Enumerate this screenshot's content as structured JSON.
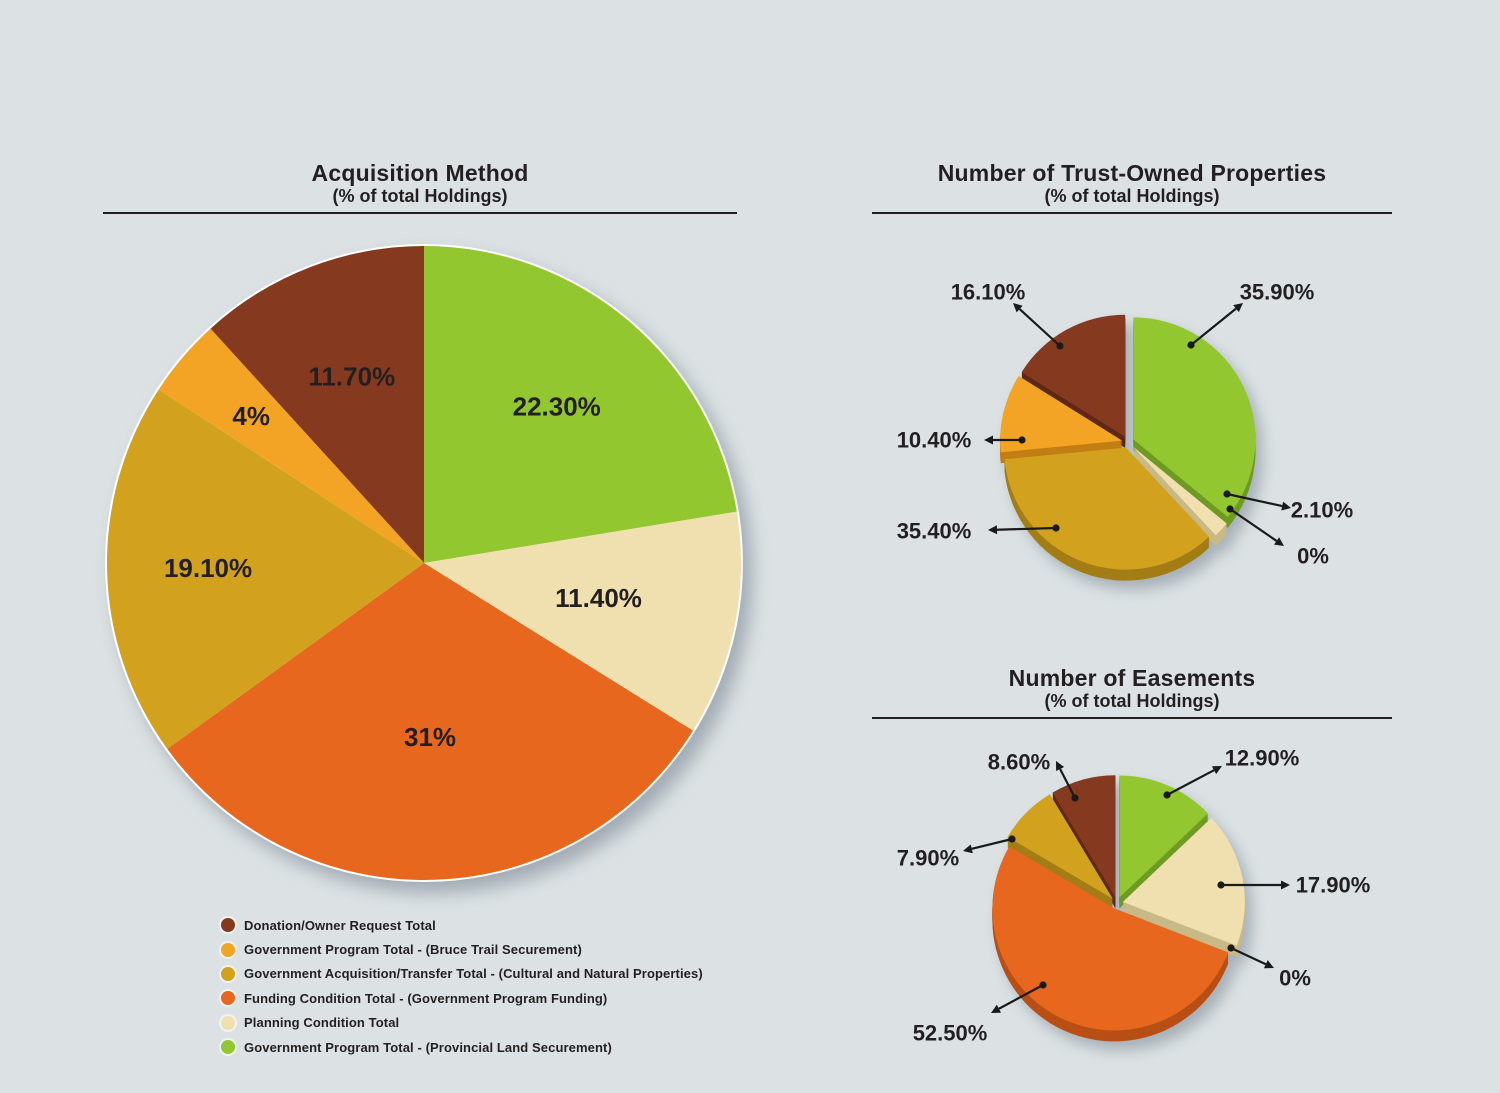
{
  "page": {
    "background_color": "#dce2e4",
    "text_color": "#231f20"
  },
  "palette": {
    "brown": {
      "fill": "#853A20",
      "side": "#5F2814"
    },
    "ltorange": {
      "fill": "#F3A424",
      "side": "#C27E12"
    },
    "gold": {
      "fill": "#D2A21E",
      "side": "#A37D15"
    },
    "orange": {
      "fill": "#E8671E",
      "side": "#B84F15"
    },
    "cream": {
      "fill": "#F0E0B0",
      "side": "#C8B986"
    },
    "green": {
      "fill": "#92C72F",
      "side": "#6F9A24"
    }
  },
  "chart_data": [
    {
      "id": "acquisition-method",
      "type": "pie",
      "title": "Acquisition Method",
      "subtitle": "(% of total Holdings)",
      "labels_position": "inside",
      "slices": [
        {
          "series": "Government Program Total - (Provincial Land Securement)",
          "value": 22.3,
          "label": "22.30%",
          "color": "green"
        },
        {
          "series": "Planning Condition Total",
          "value": 11.4,
          "label": "11.40%",
          "color": "cream"
        },
        {
          "series": "Funding Condition Total - (Government Program Funding)",
          "value": 31,
          "label": "31%",
          "color": "orange"
        },
        {
          "series": "Government Acquisition/Transfer Total - (Cultural and Natural Properties)",
          "value": 19.1,
          "label": "19.10%",
          "color": "gold"
        },
        {
          "series": "Government Program Total - (Bruce Trail Securement)",
          "value": 4,
          "label": "4%",
          "color": "ltorange"
        },
        {
          "series": "Donation/Owner Request Total",
          "value": 11.7,
          "label": "11.70%",
          "color": "brown"
        }
      ]
    },
    {
      "id": "trust-owned-properties",
      "type": "pie",
      "title": "Number of Trust-Owned Properties",
      "subtitle": "(% of total Holdings)",
      "labels_position": "callout",
      "slices": [
        {
          "series": "Government Program Total - (Provincial Land Securement)",
          "value": 35.9,
          "label": "35.90%",
          "color": "green"
        },
        {
          "series": "Planning Condition Total",
          "value": 2.1,
          "label": "2.10%",
          "color": "cream"
        },
        {
          "series": "Funding Condition Total - (Government Program Funding)",
          "value": 0,
          "label": "0%",
          "color": "orange"
        },
        {
          "series": "Government Acquisition/Transfer Total - (Cultural and Natural Properties)",
          "value": 35.4,
          "label": "35.40%",
          "color": "gold"
        },
        {
          "series": "Government Program Total - (Bruce Trail Securement)",
          "value": 10.4,
          "label": "10.40%",
          "color": "ltorange"
        },
        {
          "series": "Donation/Owner Request Total",
          "value": 16.1,
          "label": "16.10%",
          "color": "brown"
        }
      ]
    },
    {
      "id": "easements",
      "type": "pie",
      "title": "Number of Easements",
      "subtitle": "(% of total Holdings)",
      "labels_position": "callout",
      "slices": [
        {
          "series": "Government Program Total - (Provincial Land Securement)",
          "value": 12.9,
          "label": "12.90%",
          "color": "green"
        },
        {
          "series": "Planning Condition Total",
          "value": 17.9,
          "label": "17.90%",
          "color": "cream"
        },
        {
          "series": "Government Program Total - (Bruce Trail Securement)",
          "value": 0,
          "label": "0%",
          "color": "ltorange"
        },
        {
          "series": "Funding Condition Total - (Government Program Funding)",
          "value": 52.5,
          "label": "52.50%",
          "color": "orange"
        },
        {
          "series": "Government Acquisition/Transfer Total - (Cultural and Natural Properties)",
          "value": 7.9,
          "label": "7.90%",
          "color": "gold"
        },
        {
          "series": "Donation/Owner Request Total",
          "value": 8.6,
          "label": "8.60%",
          "color": "brown"
        }
      ]
    }
  ],
  "legend": {
    "items": [
      {
        "label": "Donation/Owner Request Total",
        "color": "brown"
      },
      {
        "label": "Government Program Total - (Bruce Trail Securement)",
        "color": "ltorange"
      },
      {
        "label": "Government Acquisition/Transfer Total - (Cultural and Natural Properties)",
        "color": "gold"
      },
      {
        "label": "Funding Condition Total - (Government Program Funding)",
        "color": "orange"
      },
      {
        "label": "Planning Condition Total",
        "color": "cream"
      },
      {
        "label": "Government Program Total - (Provincial Land Securement)",
        "color": "green"
      }
    ]
  }
}
